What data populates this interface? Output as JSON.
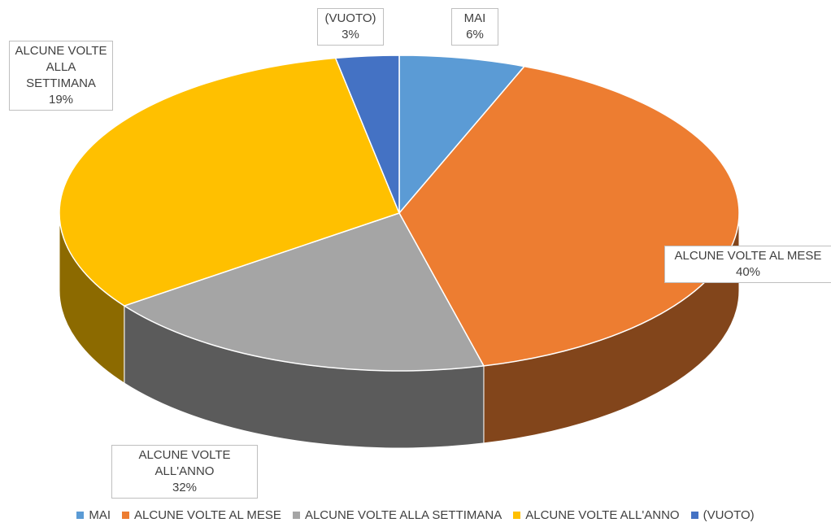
{
  "chart_data": {
    "type": "pie3d",
    "categories": [
      "MAI",
      "ALCUNE VOLTE AL MESE",
      "ALCUNE VOLTE ALLA SETTIMANA",
      "ALCUNE VOLTE ALL'ANNO",
      "(VUOTO)"
    ],
    "values": [
      6,
      40,
      19,
      32,
      3
    ],
    "value_labels": [
      "6%",
      "40%",
      "19%",
      "32%",
      "3%"
    ],
    "colors": [
      "#5b9bd5",
      "#ed7d31",
      "#a5a5a5",
      "#ffc000",
      "#4472c4"
    ],
    "legend": "bottom"
  }
}
